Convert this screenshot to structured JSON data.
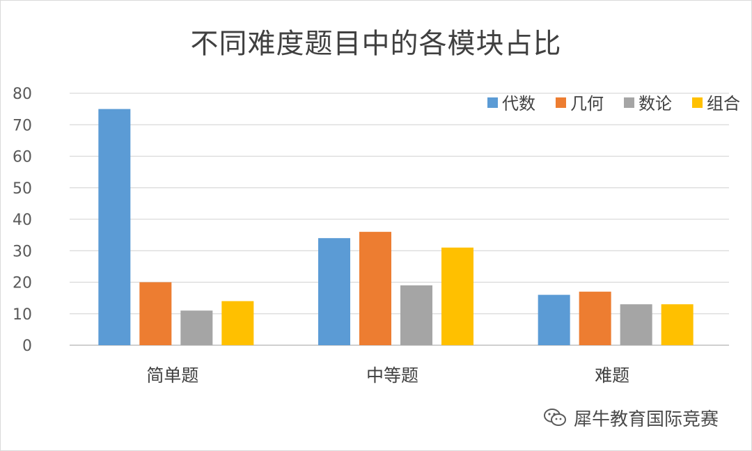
{
  "chart_data": {
    "type": "bar",
    "title": "不同难度题目中的各模块占比",
    "categories": [
      "简单题",
      "中等题",
      "难题"
    ],
    "series": [
      {
        "name": "代数",
        "values": [
          75,
          34,
          16
        ],
        "color": "#5b9bd5"
      },
      {
        "name": "几何",
        "values": [
          20,
          36,
          17
        ],
        "color": "#ed7d31"
      },
      {
        "name": "数论",
        "values": [
          11,
          19,
          13
        ],
        "color": "#a5a5a5"
      },
      {
        "name": "组合",
        "values": [
          14,
          31,
          13
        ],
        "color": "#ffc000"
      }
    ],
    "ylim": [
      0,
      80
    ],
    "yticks": [
      0,
      10,
      20,
      30,
      40,
      50,
      60,
      70,
      80
    ],
    "grid": true,
    "legend": "top-right"
  },
  "watermark": {
    "text": "犀牛教育国际竞赛",
    "icon": "wechat-icon"
  }
}
